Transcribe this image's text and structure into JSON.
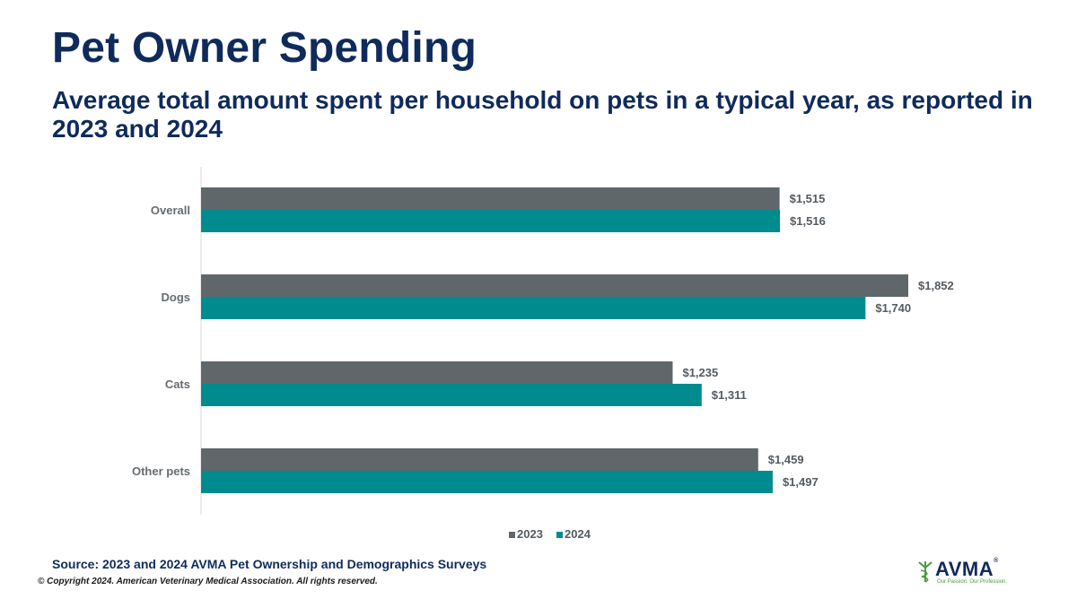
{
  "title": "Pet Owner Spending",
  "subtitle": "Average total amount spent per household on pets in a typical year, as reported in 2023 and 2024",
  "source": "Source: 2023 and 2024 AVMA Pet Ownership and Demographics Surveys",
  "copyright": "© Copyright 2024. American Veterinary Medical Association. All rights reserved.",
  "logo": {
    "name": "AVMA",
    "tagline": "Our Passion. Our Profession.",
    "icon": "caduceus-icon"
  },
  "chart_data": {
    "type": "bar",
    "orientation": "horizontal",
    "categories": [
      "Overall",
      "Dogs",
      "Cats",
      "Other pets"
    ],
    "series": [
      {
        "name": "2023",
        "values": [
          1515,
          1852,
          1235,
          1459
        ],
        "labels": [
          "$1,515",
          "$1,852",
          "$1,235",
          "$1,459"
        ],
        "color": "#5f676b"
      },
      {
        "name": "2024",
        "values": [
          1516,
          1740,
          1311,
          1497
        ],
        "labels": [
          "$1,516",
          "$1,740",
          "$1,311",
          "$1,497"
        ],
        "color": "#008b8f"
      }
    ],
    "xlim": [
      0,
      1852
    ],
    "grid": false,
    "legend": "bottom"
  }
}
